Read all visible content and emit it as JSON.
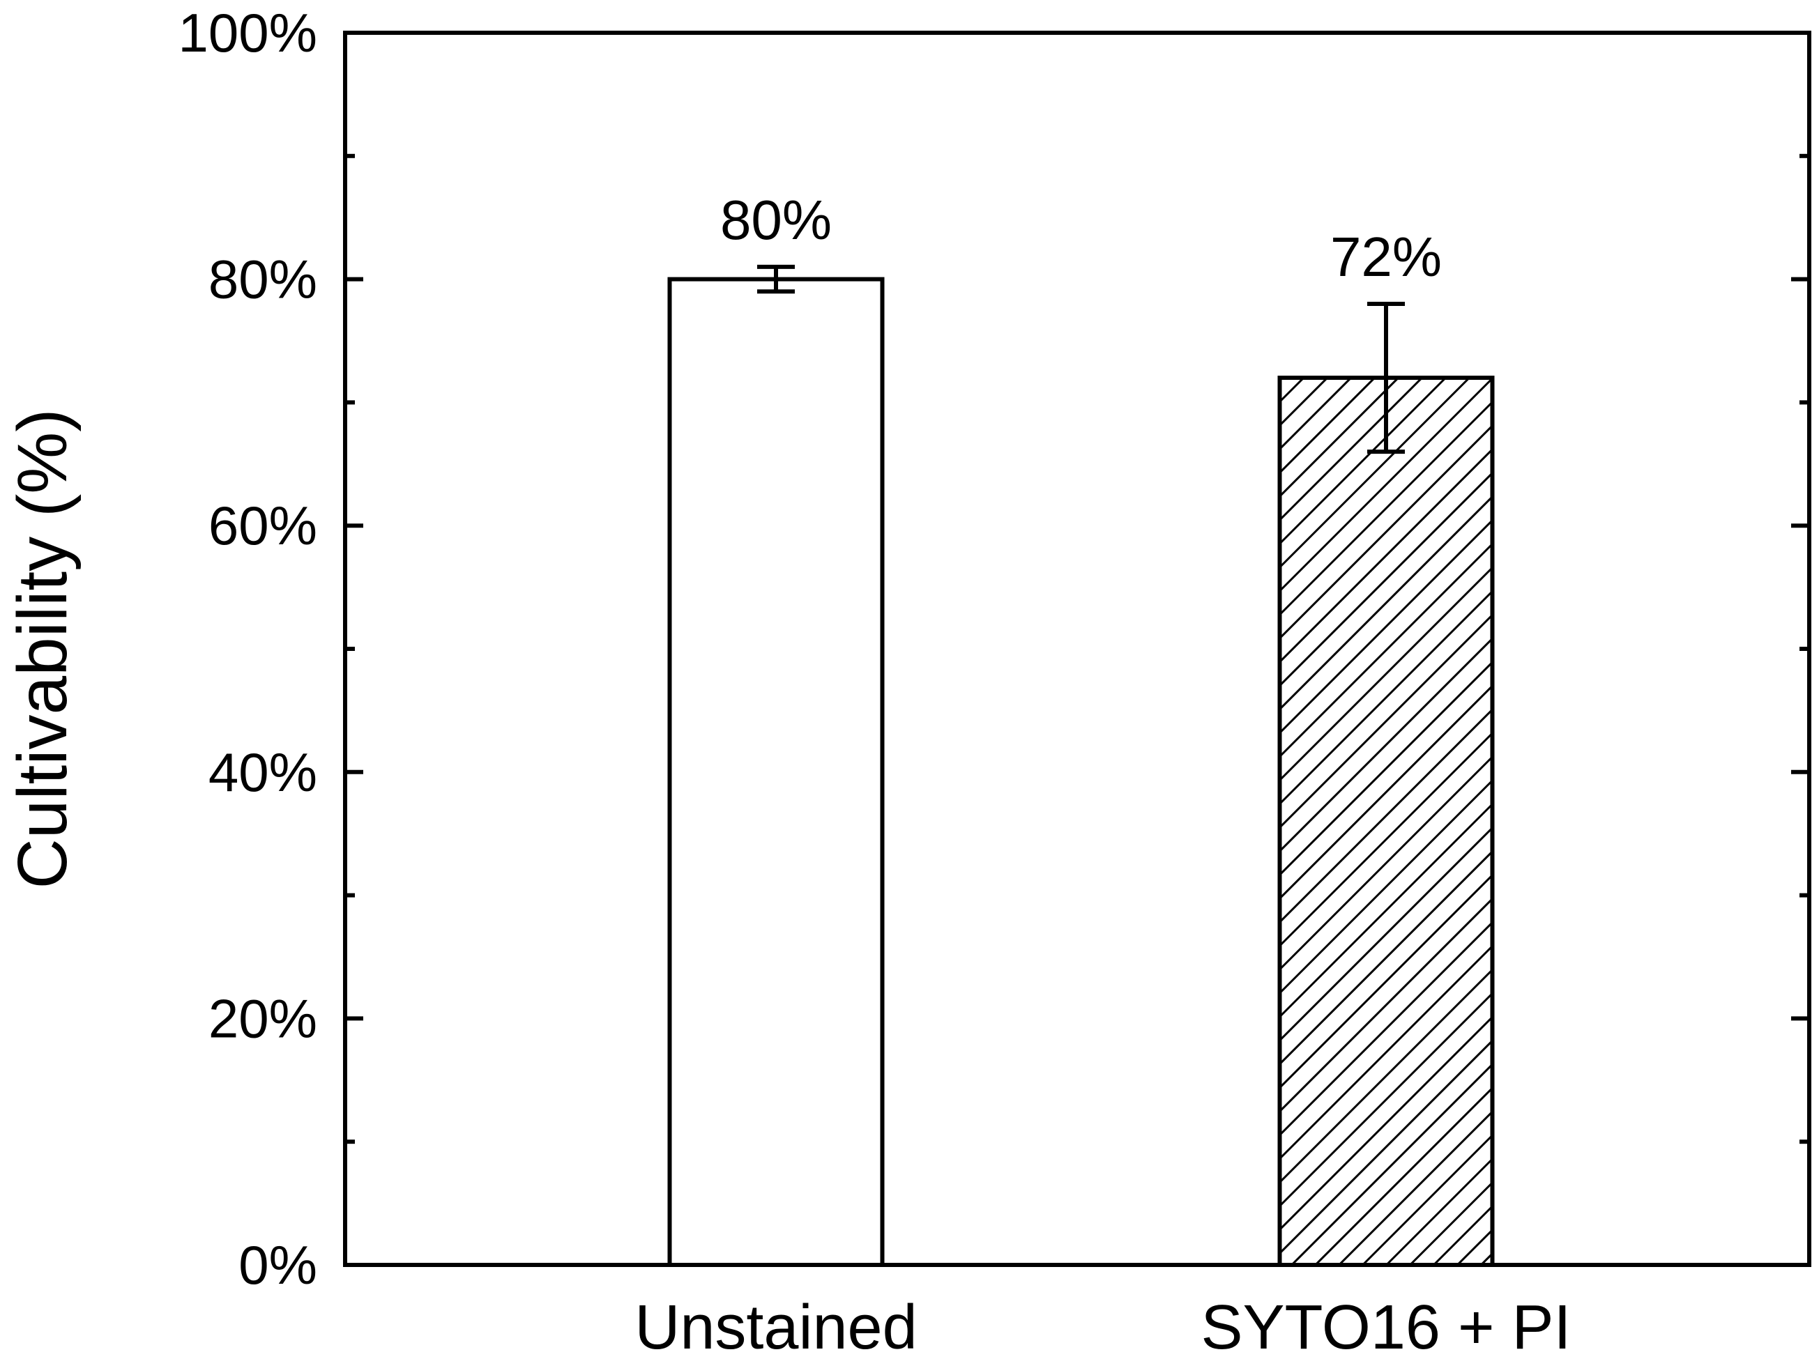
{
  "chart_data": {
    "type": "bar",
    "title": "",
    "xlabel": "",
    "ylabel": "Cultivability (%)",
    "ylim": [
      0,
      100
    ],
    "y_major_ticks": [
      0,
      20,
      40,
      60,
      80,
      100
    ],
    "y_tick_labels": [
      "0%",
      "20%",
      "40%",
      "60%",
      "80%",
      "100%"
    ],
    "y_minor_ticks": [
      10,
      30,
      50,
      70,
      90
    ],
    "categories": [
      "Unstained",
      "SYTO16 + PI"
    ],
    "values": [
      80,
      72
    ],
    "error": [
      1,
      6
    ],
    "data_labels": [
      "80%",
      "72%"
    ],
    "fills": [
      "none",
      "diagonal-hatch"
    ],
    "grid": false,
    "legend": "none",
    "colors": {
      "stroke": "#000000",
      "background": "#ffffff"
    }
  }
}
